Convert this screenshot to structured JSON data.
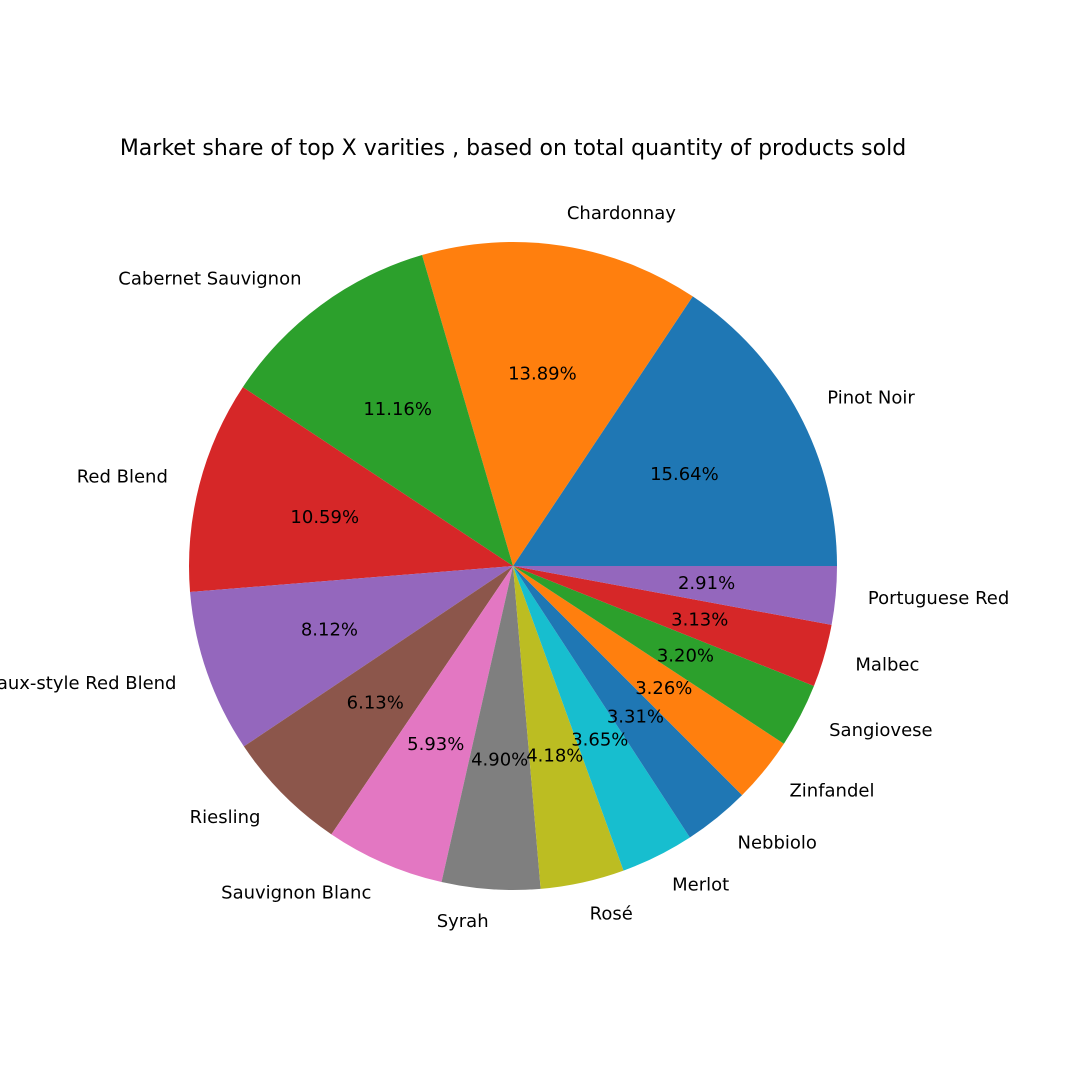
{
  "chart_data": {
    "type": "pie",
    "title": "Market share of top X varities , based on total quantity of products sold",
    "slices": [
      {
        "label": "Pinot Noir",
        "value": 15.64,
        "pct_label": "15.64%",
        "color": "#1f77b4"
      },
      {
        "label": "Chardonnay",
        "value": 13.89,
        "pct_label": "13.89%",
        "color": "#ff7f0e"
      },
      {
        "label": "Cabernet Sauvignon",
        "value": 11.16,
        "pct_label": "11.16%",
        "color": "#2ca02c"
      },
      {
        "label": "Red Blend",
        "value": 10.59,
        "pct_label": "10.59%",
        "color": "#d62728"
      },
      {
        "label": "Bordeaux-style Red Blend",
        "value": 8.12,
        "pct_label": "8.12%",
        "color": "#9467bd"
      },
      {
        "label": "Riesling",
        "value": 6.13,
        "pct_label": "6.13%",
        "color": "#8c564b"
      },
      {
        "label": "Sauvignon Blanc",
        "value": 5.93,
        "pct_label": "5.93%",
        "color": "#e377c2"
      },
      {
        "label": "Syrah",
        "value": 4.9,
        "pct_label": "4.90%",
        "color": "#7f7f7f"
      },
      {
        "label": "Rosé",
        "value": 4.18,
        "pct_label": "4.18%",
        "color": "#bcbd22"
      },
      {
        "label": "Merlot",
        "value": 3.65,
        "pct_label": "3.65%",
        "color": "#17becf"
      },
      {
        "label": "Nebbiolo",
        "value": 3.31,
        "pct_label": "3.31%",
        "color": "#1f77b4"
      },
      {
        "label": "Zinfandel",
        "value": 3.26,
        "pct_label": "3.26%",
        "color": "#ff7f0e"
      },
      {
        "label": "Sangiovese",
        "value": 3.2,
        "pct_label": "3.20%",
        "color": "#2ca02c"
      },
      {
        "label": "Malbec",
        "value": 3.13,
        "pct_label": "3.13%",
        "color": "#d62728"
      },
      {
        "label": "Portuguese Red",
        "value": 2.91,
        "pct_label": "2.91%",
        "color": "#9467bd"
      }
    ],
    "start_angle_deg": 0,
    "direction": "counterclockwise",
    "legend": "none"
  }
}
